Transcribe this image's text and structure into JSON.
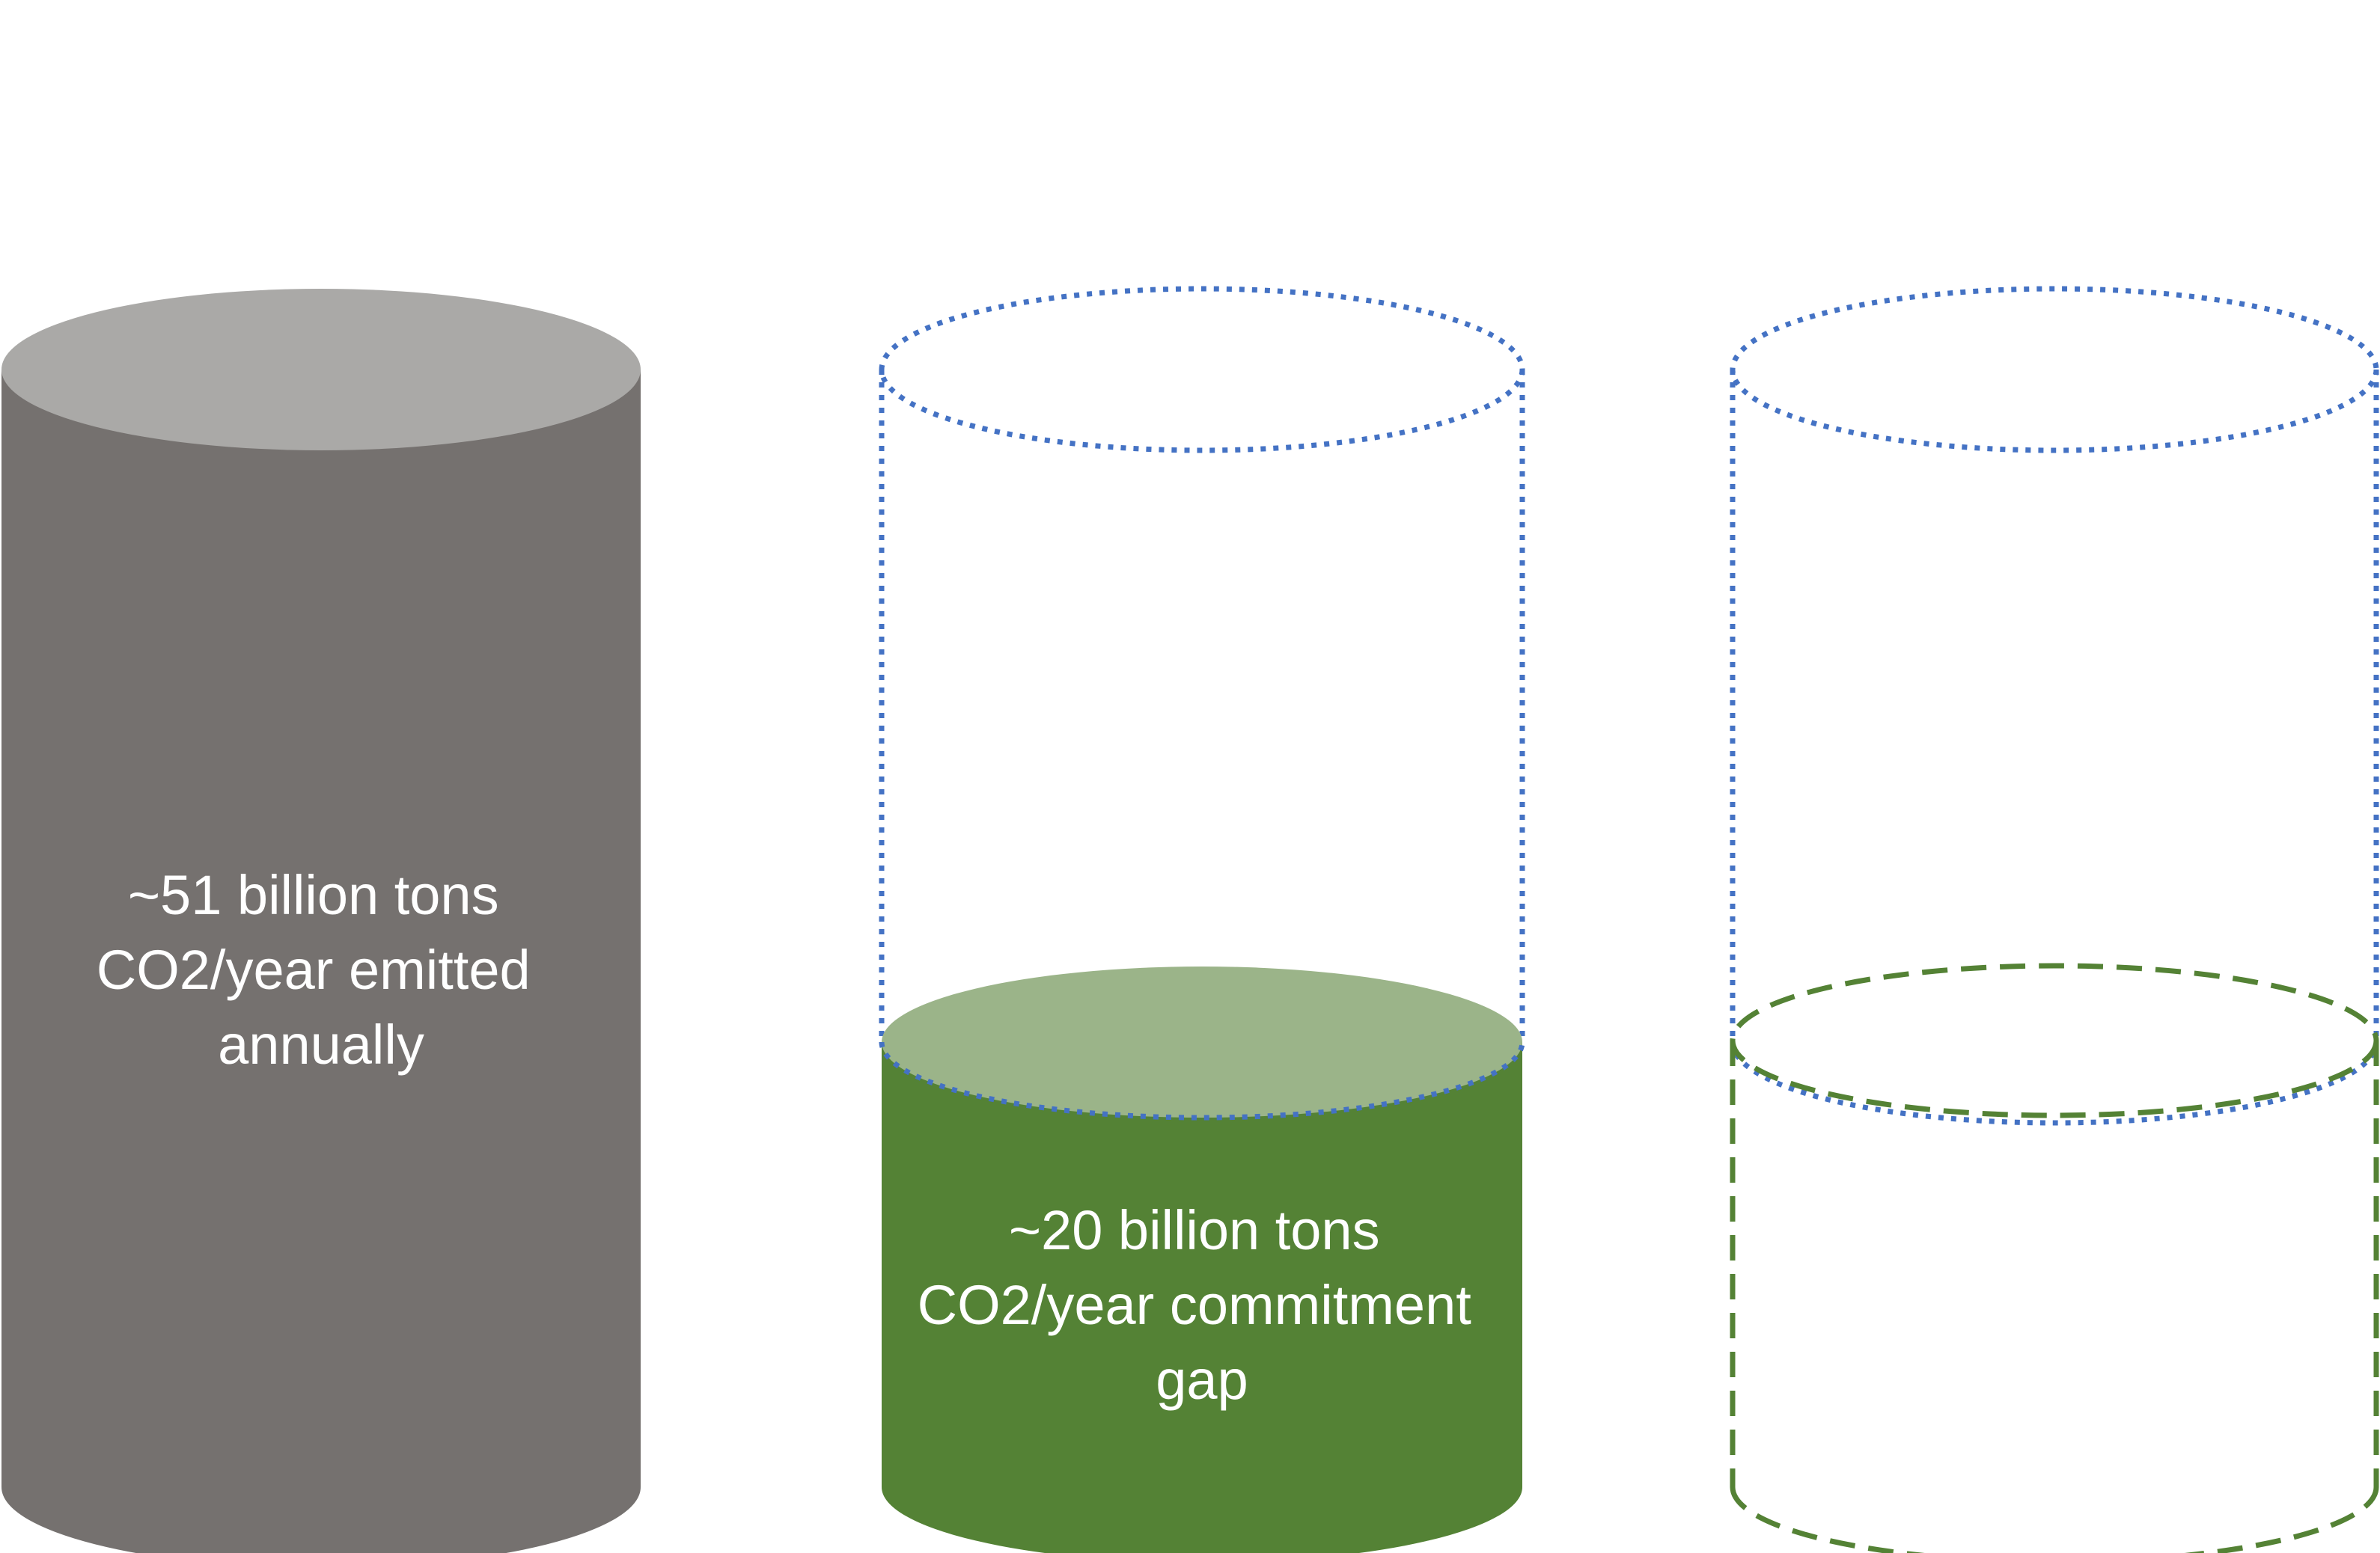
{
  "colors": {
    "emitted_body": "#75716F",
    "emitted_top": "#AAA9A7",
    "gap_body": "#548235",
    "gap_top": "#9BB489",
    "outline_blue": "#4472C4",
    "outline_green": "#548235",
    "label_text": "#FFFFFF"
  },
  "cylinders": [
    {
      "id": "emitted",
      "label_lines": [
        "~51 billion tons",
        "CO2/year emitted",
        "annually"
      ]
    },
    {
      "id": "commitment-gap",
      "label_lines": [
        "~20 billion tons",
        "CO2/year commitment",
        "gap"
      ]
    },
    {
      "id": "empty",
      "label_lines": []
    }
  ]
}
